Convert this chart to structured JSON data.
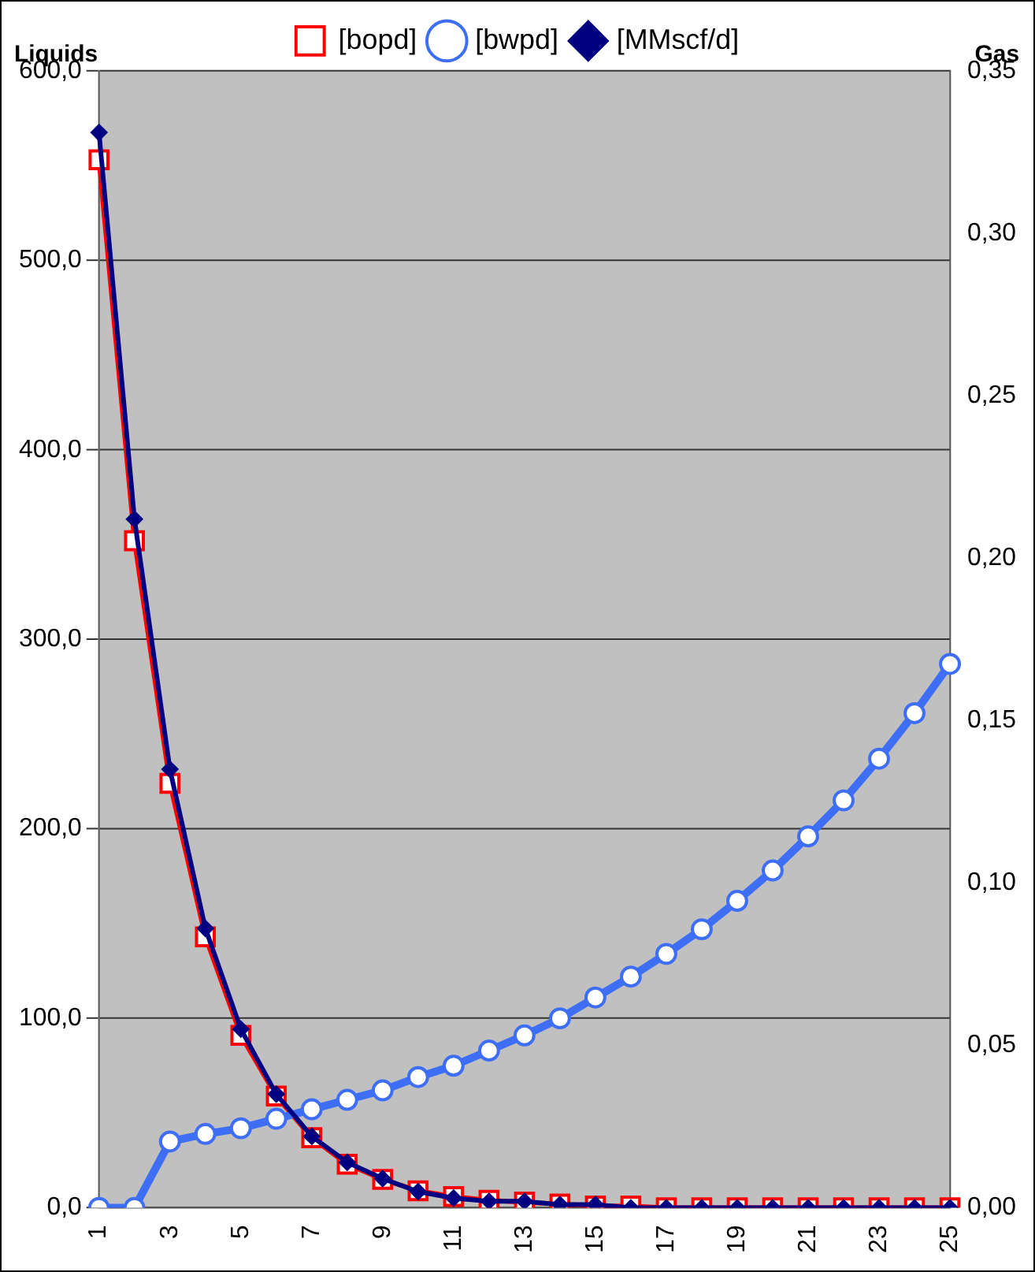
{
  "chart_data": {
    "type": "line",
    "ylabel": "Liquids",
    "y2label": "Gas",
    "categories": [
      "1",
      null,
      "3",
      null,
      "5",
      null,
      "7",
      null,
      "9",
      null,
      "11",
      null,
      "13",
      null,
      "15",
      null,
      "17",
      null,
      "19",
      null,
      "21",
      null,
      "23",
      null,
      "25"
    ],
    "series": [
      {
        "name": "[bopd]",
        "color": "#ff0000",
        "marker": "square",
        "values": [
          553,
          352,
          224,
          143,
          91,
          59,
          37,
          23,
          15,
          9,
          6,
          4,
          3,
          2,
          1,
          1,
          0,
          0,
          0,
          0,
          0,
          0,
          0,
          0,
          0
        ]
      },
      {
        "name": "[bwpd]",
        "color": "#3d6ef5",
        "marker": "circle",
        "values": [
          0,
          0,
          35,
          39,
          42,
          47,
          52,
          57,
          62,
          69,
          75,
          83,
          91,
          100,
          111,
          122,
          134,
          147,
          162,
          178,
          196,
          215,
          237,
          261,
          287
        ]
      },
      {
        "name": "[MMscf/d]",
        "color": "#000080",
        "marker": "diamond",
        "axis": "y2",
        "values": [
          0.331,
          0.212,
          0.135,
          0.086,
          0.055,
          0.035,
          0.022,
          0.014,
          0.009,
          0.005,
          0.003,
          0.002,
          0.002,
          0.001,
          0.001,
          0,
          0,
          0,
          0,
          0,
          0,
          0,
          0,
          0,
          0
        ]
      }
    ],
    "ylim": [
      0,
      600
    ],
    "yticks": [
      {
        "value": 0,
        "label": "0,0"
      },
      {
        "value": 100,
        "label": "100,0"
      },
      {
        "value": 200,
        "label": "200,0"
      },
      {
        "value": 300,
        "label": "300,0"
      },
      {
        "value": 400,
        "label": "400,0"
      },
      {
        "value": 500,
        "label": "500,0"
      },
      {
        "value": 600,
        "label": "600,0"
      }
    ],
    "y2lim": [
      0,
      0.35
    ],
    "y2ticks": [
      {
        "value": 0,
        "label": "0,00"
      },
      {
        "value": 0.05,
        "label": "0,05"
      },
      {
        "value": 0.1,
        "label": "0,10"
      },
      {
        "value": 0.15,
        "label": "0,15"
      },
      {
        "value": 0.2,
        "label": "0,20"
      },
      {
        "value": 0.25,
        "label": "0,25"
      },
      {
        "value": 0.3,
        "label": "0,30"
      },
      {
        "value": 0.35,
        "label": "0,35"
      }
    ],
    "grid": "y",
    "legend": "top",
    "line_style": "solid"
  }
}
